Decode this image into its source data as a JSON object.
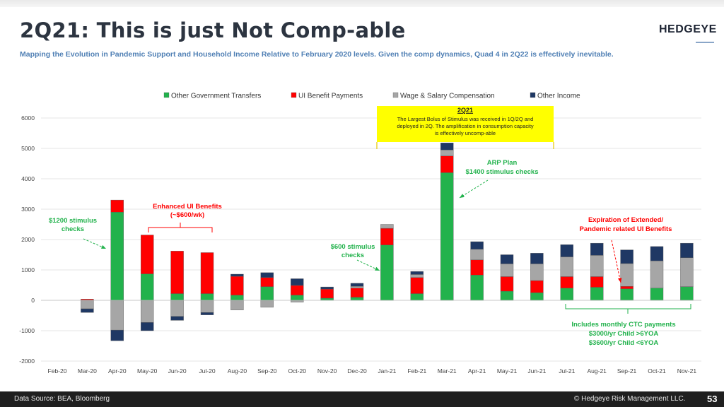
{
  "slide": {
    "title": "2Q21:  This is just Not Comp-able",
    "subtitle": "Mapping the Evolution in Pandemic Support and Household Income Relative to February 2020 levels.  Given the comp dynamics, Quad 4 in 2Q22 is effectively inevitable.",
    "logo": "HEDGEYE",
    "footer_source": "Data Source: BEA, Bloomberg",
    "footer_copyright": "© Hedgeye Risk Management LLC.",
    "page_number": "53"
  },
  "chart_data": {
    "type": "bar",
    "stacked": true,
    "title": "",
    "xlabel": "",
    "ylabel": "",
    "ylim": [
      -2000,
      6000
    ],
    "yticks": [
      6000,
      5000,
      4000,
      3000,
      2000,
      1000,
      0,
      -1000,
      -2000
    ],
    "grid": true,
    "legend_position": "top",
    "categories": [
      "Feb-20",
      "Mar-20",
      "Apr-20",
      "May-20",
      "Jun-20",
      "Jul-20",
      "Aug-20",
      "Sep-20",
      "Oct-20",
      "Nov-20",
      "Dec-20",
      "Jan-21",
      "Feb-21",
      "Mar-21",
      "Apr-21",
      "May-21",
      "Jun-21",
      "Jul-21",
      "Aug-21",
      "Sep-21",
      "Oct-21",
      "Nov-21"
    ],
    "series": [
      {
        "name": "Other Government Transfers",
        "color": "#22b24c",
        "values": [
          0,
          10,
          2900,
          870,
          220,
          220,
          170,
          450,
          170,
          70,
          100,
          1820,
          220,
          4200,
          830,
          300,
          250,
          400,
          430,
          380,
          400,
          450
        ]
      },
      {
        "name": "UI Benefit Payments",
        "color": "#ff0000",
        "values": [
          0,
          30,
          400,
          1280,
          1400,
          1350,
          620,
          300,
          320,
          300,
          300,
          550,
          530,
          550,
          500,
          480,
          400,
          380,
          350,
          80,
          0,
          0
        ]
      },
      {
        "name": "Wage & Salary  Compensation",
        "color": "#a6a6a6",
        "values": [
          0,
          -280,
          -980,
          -730,
          -530,
          -400,
          -320,
          -230,
          -60,
          0,
          60,
          130,
          100,
          200,
          350,
          420,
          550,
          650,
          700,
          750,
          900,
          950
        ]
      },
      {
        "name": "Other Income",
        "color": "#1f3864",
        "values": [
          0,
          -120,
          -350,
          -270,
          -130,
          -80,
          70,
          160,
          220,
          70,
          100,
          0,
          100,
          230,
          250,
          300,
          350,
          400,
          400,
          450,
          470,
          480
        ]
      }
    ],
    "annotations": [
      {
        "id": "stim1200",
        "text_lines": [
          "$1200 stimulus",
          "checks"
        ],
        "color": "#22b24c",
        "category": "Apr-20"
      },
      {
        "id": "enhanced_ui",
        "text_lines": [
          "Enhanced UI Benefits",
          "(~$600/wk)"
        ],
        "color": "#ff0000",
        "categories": [
          "May-20",
          "Jul-20"
        ]
      },
      {
        "id": "stim600",
        "text_lines": [
          "$600 stimulus",
          "checks"
        ],
        "color": "#22b24c",
        "category": "Jan-21"
      },
      {
        "id": "arp",
        "text_lines": [
          "ARP Plan",
          "$1400 stimulus checks"
        ],
        "color": "#22b24c",
        "category": "Mar-21"
      },
      {
        "id": "expiration",
        "text_lines": [
          "Expiration of Extended/",
          "Pandemic related UI Benefits"
        ],
        "color": "#ff0000",
        "category": "Sep-21"
      },
      {
        "id": "ctc",
        "text_lines": [
          "Includes monthly CTC payments",
          "$3000/yr Child >6YOA",
          "$3600/yr Child <6YOA"
        ],
        "color": "#22b24c",
        "categories": [
          "Jul-21",
          "Nov-21"
        ]
      }
    ],
    "callout": {
      "heading": "2Q21",
      "text_lines": [
        "The Largest Bolus of Stimulus was received in 1Q/2Q and",
        "deployed in 2Q.   The amplification in consumption capacity",
        "is effectively uncomp-able"
      ],
      "background": "#ffff00"
    }
  }
}
